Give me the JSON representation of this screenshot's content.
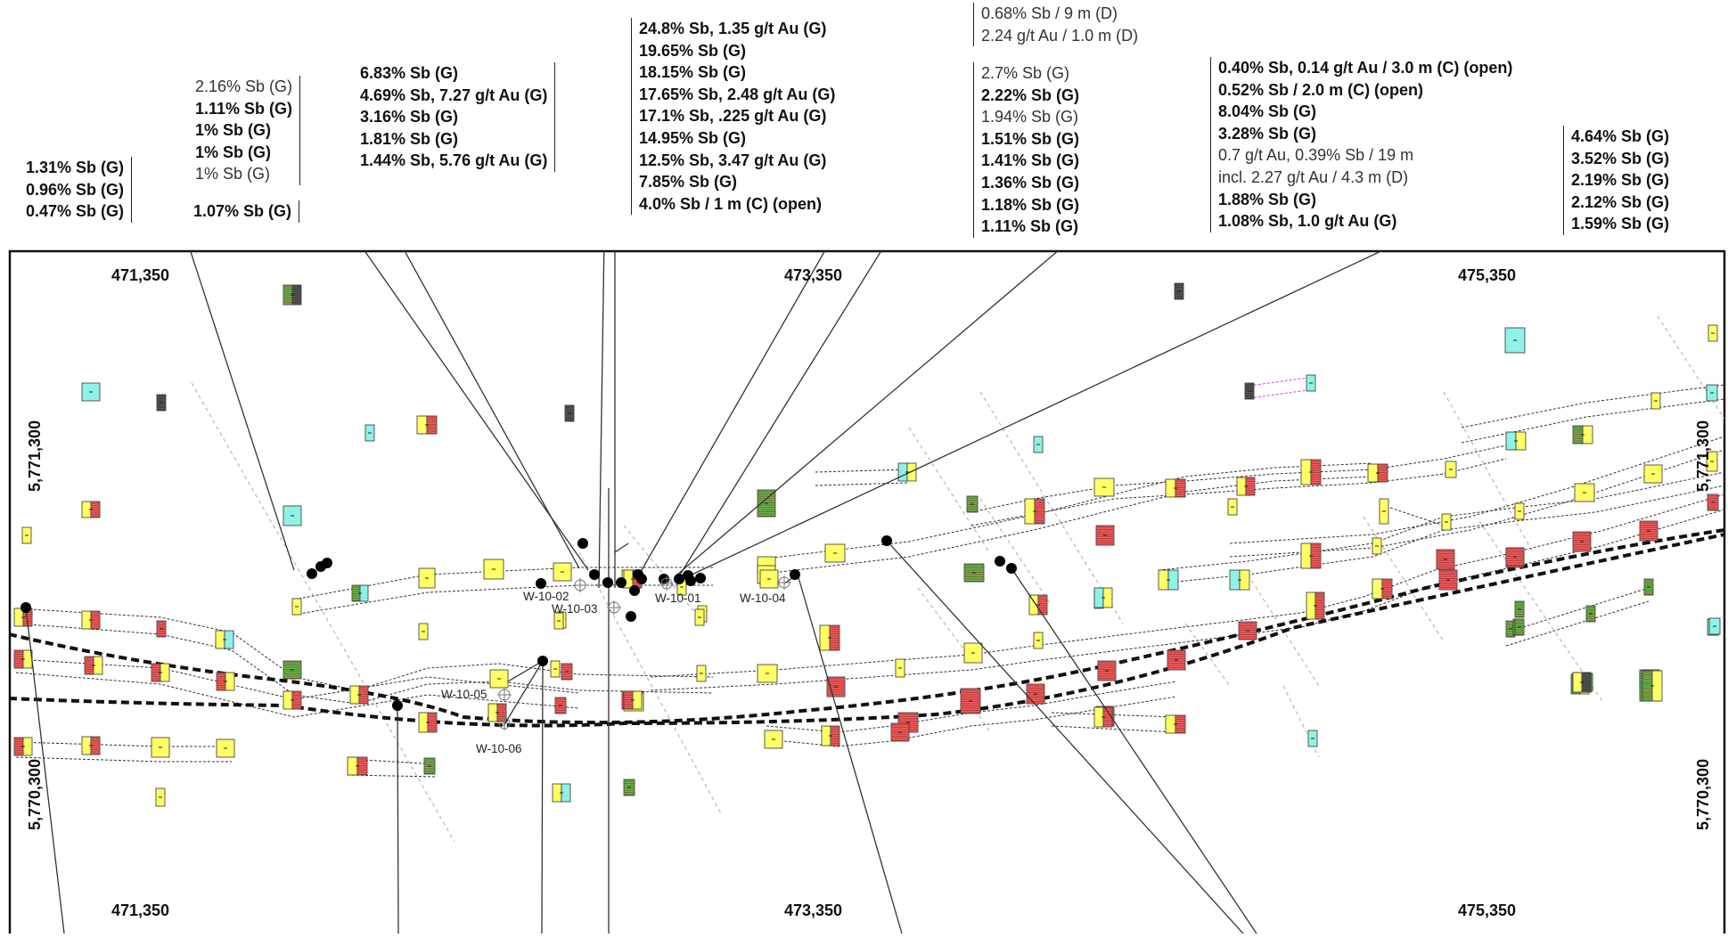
{
  "map": {
    "easting_labels": [
      "471,350",
      "473,350",
      "475,350"
    ],
    "northing_labels": [
      "5,771,300",
      "5,770,300"
    ],
    "drillholes": [
      "W-10-01",
      "W-10-02",
      "W-10-03",
      "W-10-04",
      "W-10-05",
      "W-10-06"
    ],
    "colors": {
      "yellow": "#ffff66",
      "red": "#f25c5c",
      "green": "#66b84c",
      "cyan": "#8ff2e6",
      "grey": "#555555",
      "magenta": "#e040e0"
    },
    "callouts": [
      {
        "lines": [
          {
            "t": "1.31% Sb (G)",
            "b": true
          },
          {
            "t": "0.96% Sb (G)",
            "b": true
          },
          {
            "t": "0.47% Sb (G)",
            "b": true
          }
        ]
      },
      {
        "lines": [
          {
            "t": "2.16% Sb (G)",
            "b": false
          },
          {
            "t": "1.11% Sb (G)",
            "b": true
          },
          {
            "t": "1% Sb (G)",
            "b": true
          },
          {
            "t": "1% Sb (G)",
            "b": true
          },
          {
            "t": "1% Sb (G)",
            "b": false
          }
        ]
      },
      {
        "lines": [
          {
            "t": "1.07% Sb (G)",
            "b": true
          }
        ]
      },
      {
        "lines": [
          {
            "t": "6.83% Sb (G)",
            "b": true
          },
          {
            "t": "4.69% Sb, 7.27 g/t Au (G)",
            "b": true
          },
          {
            "t": "3.16% Sb (G)",
            "b": true
          },
          {
            "t": "1.81% Sb (G)",
            "b": true
          },
          {
            "t": "1.44% Sb, 5.76 g/t Au (G)",
            "b": true
          }
        ]
      },
      {
        "lines": [
          {
            "t": "24.8% Sb, 1.35 g/t Au  (G)",
            "b": true
          },
          {
            "t": "19.65% Sb (G)",
            "b": true
          },
          {
            "t": "18.15% Sb (G)",
            "b": true
          },
          {
            "t": "17.65% Sb, 2.48 g/t Au (G)",
            "b": true
          },
          {
            "t": "17.1% Sb, .225 g/t Au (G)",
            "b": true
          },
          {
            "t": "14.95% Sb (G)",
            "b": true
          },
          {
            "t": "12.5% Sb, 3.47 g/t Au (G)",
            "b": true
          },
          {
            "t": "7.85% Sb (G)",
            "b": true
          },
          {
            "t": "4.0% Sb / 1 m (C) (open)",
            "b": true
          }
        ]
      },
      {
        "lines": [
          {
            "t": "0.68% Sb / 9 m (D)",
            "b": false
          },
          {
            "t": "2.24 g/t Au / 1.0 m (D)",
            "b": false
          }
        ]
      },
      {
        "lines": [
          {
            "t": "2.7% Sb (G)",
            "b": false
          },
          {
            "t": "2.22% Sb (G)",
            "b": true
          },
          {
            "t": "1.94% Sb (G)",
            "b": false
          },
          {
            "t": "1.51% Sb (G)",
            "b": true
          },
          {
            "t": "1.41% Sb (G)",
            "b": true
          },
          {
            "t": "1.36% Sb (G)",
            "b": true
          },
          {
            "t": "1.18% Sb (G)",
            "b": true
          },
          {
            "t": "1.11% Sb (G)",
            "b": true
          }
        ]
      },
      {
        "lines": [
          {
            "t": "0.40% Sb, 0.14 g/t Au / 3.0 m (C) (open)",
            "b": true
          },
          {
            "t": "0.52% Sb / 2.0 m (C) (open)",
            "b": true
          },
          {
            "t": "8.04% Sb (G)",
            "b": true
          },
          {
            "t": "3.28% Sb (G)",
            "b": true
          },
          {
            "t": "0.7 g/t Au, 0.39% Sb / 19 m",
            "b": false
          },
          {
            "t": "incl. 2.27 g/t Au / 4.3 m (D)",
            "b": false
          },
          {
            "t": "1.88% Sb (G)",
            "b": true
          },
          {
            "t": "1.08% Sb, 1.0 g/t Au (G)",
            "b": true
          }
        ]
      },
      {
        "lines": [
          {
            "t": "4.64% Sb (G)",
            "b": true
          },
          {
            "t": "3.52% Sb (G)",
            "b": true
          },
          {
            "t": "2.19% Sb (G)",
            "b": true
          },
          {
            "t": "2.12% Sb (G)",
            "b": true
          },
          {
            "t": "1.59% Sb (G)",
            "b": true
          }
        ]
      }
    ]
  }
}
